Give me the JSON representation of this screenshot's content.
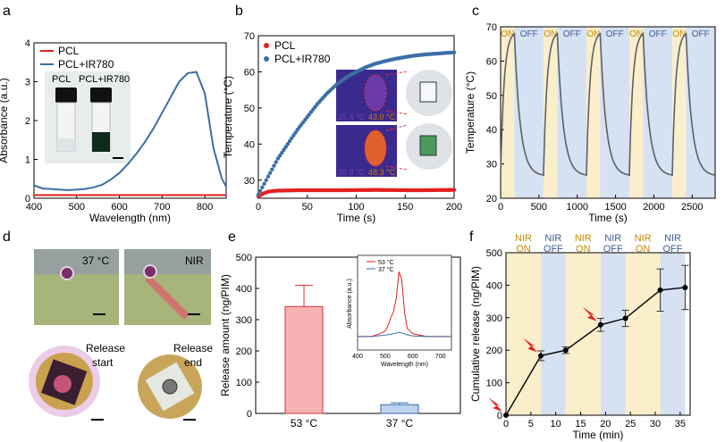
{
  "panels": {
    "a": "a",
    "b": "b",
    "c": "c",
    "d": "d",
    "e": "e",
    "f": "f"
  },
  "colors": {
    "red": "#e41e1e",
    "blue": "#3b6ea5",
    "on": "#fbeecb",
    "off": "#d6e1f1",
    "grey": "#5a6268",
    "barRed": "#f7b3b3",
    "barBlue": "#bcd2ee",
    "arrow": "#e02020"
  },
  "chart_data": [
    {
      "id": "a",
      "type": "line",
      "xlabel": "Wavelength (nm)",
      "ylabel": "Absorbance (a.u.)",
      "xlim": [
        400,
        850
      ],
      "ylim": [
        0,
        4
      ],
      "xticks": [
        "400",
        "500",
        "600",
        "700",
        "800"
      ],
      "yticks": [
        "0",
        "1",
        "2",
        "3",
        "4"
      ],
      "legend": [
        "PCL",
        "PCL+IR780"
      ],
      "inset_labels": [
        "PCL",
        "PCL+IR780"
      ],
      "series": [
        {
          "name": "PCL",
          "x": [
            400,
            850
          ],
          "y": [
            0.08,
            0.08
          ]
        },
        {
          "name": "PCL+IR780",
          "x": [
            400,
            420,
            440,
            460,
            480,
            500,
            520,
            540,
            560,
            580,
            600,
            620,
            640,
            660,
            680,
            700,
            720,
            740,
            760,
            780,
            800,
            820,
            840,
            850
          ],
          "y": [
            0.33,
            0.25,
            0.24,
            0.22,
            0.21,
            0.22,
            0.24,
            0.28,
            0.35,
            0.48,
            0.65,
            0.88,
            1.15,
            1.45,
            1.8,
            2.2,
            2.6,
            3.0,
            3.22,
            3.25,
            2.7,
            1.3,
            0.5,
            0.3
          ]
        }
      ]
    },
    {
      "id": "b",
      "type": "scatter",
      "xlabel": "Time (s)",
      "ylabel": "Temperature (°C)",
      "xlim": [
        0,
        200
      ],
      "ylim": [
        25,
        70
      ],
      "xticks": [
        "0",
        "50",
        "100",
        "150",
        "200"
      ],
      "yticks": [
        "30",
        "40",
        "50",
        "60",
        "70"
      ],
      "legend": [
        "PCL",
        "PCL+IR780"
      ],
      "inset_temps": [
        "25.4 °C",
        "43.0 °C",
        "25.8 °C",
        "48.3 °C"
      ],
      "series": [
        {
          "name": "PCL",
          "x": [
            0,
            5,
            10,
            15,
            20,
            40,
            80,
            120,
            160,
            200
          ],
          "y": [
            25.5,
            26.3,
            26.8,
            27,
            27.1,
            27.2,
            27.2,
            27.3,
            27.2,
            27.3
          ]
        },
        {
          "name": "PCL+IR780",
          "x": [
            0,
            5,
            10,
            15,
            20,
            25,
            30,
            40,
            50,
            60,
            70,
            80,
            90,
            100,
            110,
            120,
            130,
            140,
            150,
            160,
            170,
            180,
            190,
            200
          ],
          "y": [
            26,
            28.5,
            31,
            33.5,
            36,
            38,
            40,
            44,
            47.5,
            51,
            54,
            56.5,
            58.5,
            60,
            61.3,
            62.3,
            63,
            63.6,
            64.1,
            64.5,
            64.8,
            65,
            65.2,
            65.4
          ]
        }
      ]
    },
    {
      "id": "c",
      "type": "line",
      "xlabel": "Time (s)",
      "ylabel": "Temperature (°C)",
      "xlim": [
        0,
        2800
      ],
      "ylim": [
        20,
        70
      ],
      "xticks": [
        "0",
        "500",
        "1000",
        "1500",
        "2000",
        "2500"
      ],
      "yticks": [
        "20",
        "30",
        "40",
        "50",
        "60",
        "70"
      ],
      "on_label": "ON",
      "off_label": "OFF",
      "cycles": [
        [
          0,
          180,
          560
        ],
        [
          560,
          740,
          1120
        ],
        [
          1120,
          1300,
          1680
        ],
        [
          1680,
          1860,
          2240
        ],
        [
          2240,
          2420,
          2800
        ]
      ],
      "peak": 68,
      "base": 26.5
    },
    {
      "id": "e",
      "type": "bar",
      "ylabel": "Release amount (ng/PIM)",
      "ylim": [
        0,
        500
      ],
      "yticks": [
        "0",
        "100",
        "200",
        "300",
        "400",
        "500"
      ],
      "categories": [
        "53 °C",
        "37 °C"
      ],
      "values": [
        342,
        28
      ],
      "errors": [
        68,
        6
      ],
      "inset": {
        "type": "line",
        "xlabel": "Wavelength (nm)",
        "ylabel": "Absorbance (a.u.)",
        "xticks": [
          "400",
          "500",
          "600",
          "700"
        ],
        "legend": [
          "53 °C",
          "37 °C"
        ],
        "series": [
          {
            "name": "53 °C",
            "x": [
              400,
              450,
              480,
              500,
              510,
              520,
              530,
              540,
              550,
              560,
              570,
              580,
              600,
              650,
              740
            ],
            "y": [
              0.05,
              0.05,
              0.06,
              0.07,
              0.09,
              0.12,
              0.14,
              0.19,
              0.29,
              0.26,
              0.14,
              0.08,
              0.06,
              0.05,
              0.05
            ]
          },
          {
            "name": "37 °C",
            "x": [
              400,
              450,
              500,
              520,
              540,
              550,
              560,
              580,
              600,
              650,
              740
            ],
            "y": [
              0.05,
              0.05,
              0.055,
              0.058,
              0.062,
              0.066,
              0.063,
              0.056,
              0.052,
              0.05,
              0.05
            ]
          }
        ]
      }
    },
    {
      "id": "f",
      "type": "line",
      "xlabel": "Time (min)",
      "ylabel": "Cumulative release (ng/PIM)",
      "xlim": [
        0,
        37
      ],
      "ylim": [
        0,
        500
      ],
      "xticks": [
        "0",
        "5",
        "10",
        "15",
        "20",
        "25",
        "30",
        "35"
      ],
      "yticks": [
        "0",
        "100",
        "200",
        "300",
        "400",
        "500"
      ],
      "bands": [
        {
          "from": 0,
          "to": 7,
          "label1": "NIR",
          "label2": "ON",
          "kind": "on"
        },
        {
          "from": 7,
          "to": 12,
          "label1": "NIR",
          "label2": "OFF",
          "kind": "off"
        },
        {
          "from": 12,
          "to": 19,
          "label1": "NIR",
          "label2": "ON",
          "kind": "on"
        },
        {
          "from": 19,
          "to": 24,
          "label1": "NIR",
          "label2": "OFF",
          "kind": "off"
        },
        {
          "from": 24,
          "to": 31,
          "label1": "NIR",
          "label2": "ON",
          "kind": "on"
        },
        {
          "from": 31,
          "to": 36,
          "label1": "NIR",
          "label2": "OFF",
          "kind": "off"
        }
      ],
      "x": [
        0,
        7,
        12,
        19,
        24,
        31,
        36
      ],
      "y": [
        0,
        183,
        200,
        278,
        298,
        385,
        393
      ],
      "err": [
        0,
        15,
        10,
        20,
        25,
        65,
        68
      ],
      "arrows_at": [
        0,
        7,
        19
      ]
    }
  ],
  "photos": {
    "d_labels": [
      "37 °C",
      "NIR"
    ],
    "release_start": [
      "Release",
      "start"
    ],
    "release_end": [
      "Release",
      "end"
    ]
  }
}
